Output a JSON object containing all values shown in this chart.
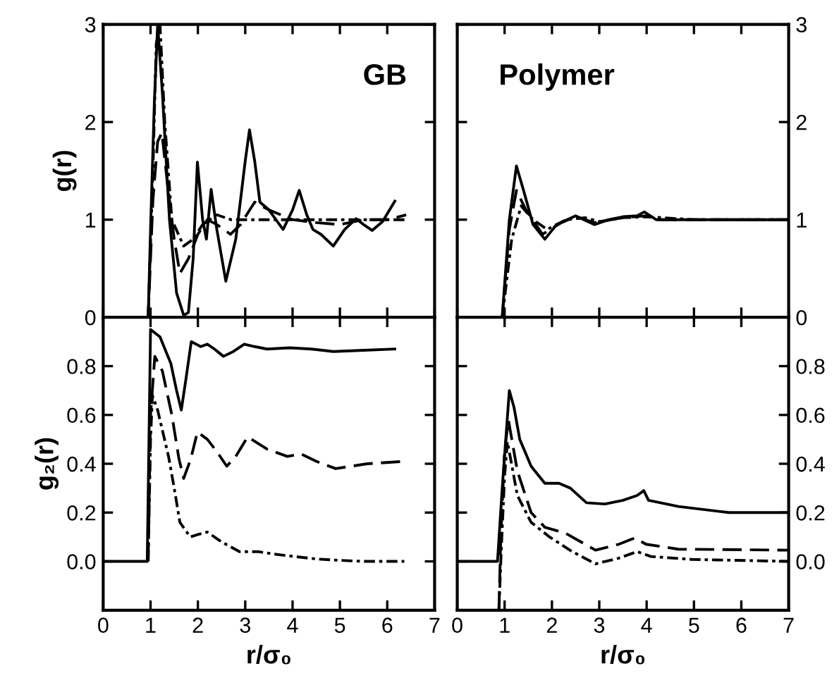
{
  "chart_data": [
    {
      "type": "line",
      "ylabel": "g(r)",
      "annotations": [
        "GB"
      ],
      "xlim": [
        0,
        7
      ],
      "xticks": [
        0,
        1,
        2,
        3,
        4,
        5,
        6,
        7
      ],
      "ylim": [
        0,
        3
      ],
      "yticks": [
        0,
        1,
        2,
        3
      ],
      "tick_labels": "y",
      "grid": false,
      "legend": false,
      "marker": "none",
      "series": [
        {
          "color": "#000000",
          "line_style": "solid",
          "x": [
            0.95,
            1.0,
            1.08,
            1.15,
            1.25,
            1.4,
            1.55,
            1.7,
            1.8,
            1.9,
            1.99,
            2.1,
            2.18,
            2.28,
            2.4,
            2.59,
            2.8,
            3.0,
            3.09,
            3.2,
            3.31,
            3.5,
            3.8,
            4.0,
            4.14,
            4.3,
            4.43,
            4.6,
            4.86,
            5.1,
            5.34,
            5.5,
            5.68,
            5.9,
            6.16
          ],
          "values": [
            0,
            0.9,
            2.2,
            3.0,
            2.3,
            1.0,
            0.25,
            0.02,
            0.05,
            0.6,
            1.59,
            1.0,
            0.8,
            1.31,
            0.9,
            0.37,
            0.8,
            1.6,
            1.92,
            1.6,
            1.18,
            1.1,
            0.9,
            1.1,
            1.3,
            1.05,
            0.9,
            0.85,
            0.73,
            0.9,
            1.01,
            0.95,
            0.89,
            0.98,
            1.19
          ]
        },
        {
          "color": "#000000",
          "line_style": "dashed",
          "x": [
            0.95,
            1.05,
            1.15,
            1.24,
            1.35,
            1.5,
            1.62,
            1.8,
            2.0,
            2.2,
            2.4,
            2.69,
            2.9,
            3.2,
            3.5,
            4.0,
            4.5,
            5.0,
            5.5,
            6.0,
            6.4
          ],
          "values": [
            0,
            1.2,
            1.8,
            1.89,
            1.4,
            0.8,
            0.45,
            0.6,
            0.85,
            1.0,
            0.95,
            0.85,
            0.95,
            1.18,
            1.1,
            1.0,
            0.97,
            0.95,
            1.0,
            1.0,
            1.05
          ]
        },
        {
          "color": "#000000",
          "line_style": "dashdot",
          "x": [
            0.95,
            1.05,
            1.12,
            1.2,
            1.3,
            1.45,
            1.7,
            1.9,
            2.1,
            2.4,
            2.7,
            3.0,
            3.5,
            4.0,
            5.0,
            6.0,
            6.4
          ],
          "values": [
            0,
            1.5,
            2.8,
            3.0,
            2.0,
            1.0,
            0.73,
            0.8,
            0.95,
            1.05,
            1.0,
            1.0,
            1.0,
            1.0,
            1.0,
            1.0,
            1.0
          ]
        }
      ]
    },
    {
      "type": "line",
      "annotations": [
        "Polymer"
      ],
      "xlim": [
        0,
        7
      ],
      "xticks": [
        0,
        1,
        2,
        3,
        4,
        5,
        6,
        7
      ],
      "ylim": [
        0,
        3
      ],
      "yticks": [
        0,
        1,
        2,
        3
      ],
      "tick_labels": "y",
      "grid": false,
      "legend": false,
      "marker": "none",
      "series": [
        {
          "color": "#000000",
          "line_style": "solid",
          "x": [
            0.95,
            1.1,
            1.25,
            1.4,
            1.6,
            1.85,
            2.1,
            2.5,
            2.9,
            3.2,
            3.5,
            3.8,
            3.95,
            4.2,
            5,
            6,
            7
          ],
          "values": [
            0,
            1.0,
            1.55,
            1.3,
            0.95,
            0.8,
            0.95,
            1.04,
            0.95,
            1.0,
            1.03,
            1.04,
            1.08,
            1.0,
            1.0,
            1.0,
            1.0
          ]
        },
        {
          "color": "#000000",
          "line_style": "dashed",
          "x": [
            0.95,
            1.1,
            1.25,
            1.45,
            1.8,
            2.2,
            2.5,
            2.9,
            3.5,
            4.0,
            4.2,
            5,
            7
          ],
          "values": [
            0,
            0.9,
            1.3,
            1.1,
            0.85,
            0.97,
            1.03,
            0.97,
            1.02,
            1.04,
            1.0,
            1.0,
            1.0
          ]
        },
        {
          "color": "#000000",
          "line_style": "dashdot",
          "x": [
            0.95,
            1.15,
            1.35,
            1.6,
            1.9,
            2.3,
            2.7,
            3.0,
            3.5,
            4.0,
            5,
            7
          ],
          "values": [
            0,
            0.8,
            1.14,
            1.0,
            0.9,
            1.0,
            1.02,
            0.98,
            1.02,
            1.03,
            1.0,
            1.0
          ]
        }
      ]
    },
    {
      "type": "line",
      "ylabel": "g₂(r)",
      "xlabel": "r/σ₀",
      "xlim": [
        0,
        7
      ],
      "xticks": [
        0,
        1,
        2,
        3,
        4,
        5,
        6,
        7
      ],
      "ylim": [
        -0.2,
        1.0
      ],
      "yticks": [
        {
          "value": 0,
          "label": "0.0"
        },
        {
          "value": 0.2,
          "label": "0.2"
        },
        {
          "value": 0.4,
          "label": "0.4"
        },
        {
          "value": 0.6,
          "label": "0.6"
        },
        {
          "value": 0.8,
          "label": "0.8"
        }
      ],
      "grid": false,
      "legend": false,
      "marker": "none",
      "series": [
        {
          "color": "#000000",
          "line_style": "solid",
          "x": [
            0,
            0.93,
            1.0,
            1.2,
            1.43,
            1.55,
            1.65,
            1.75,
            1.86,
            2.06,
            2.2,
            2.35,
            2.54,
            2.75,
            2.98,
            3.2,
            3.46,
            3.94,
            4.4,
            4.86,
            5.5,
            6.16
          ],
          "values": [
            0,
            0,
            0.95,
            0.92,
            0.81,
            0.7,
            0.62,
            0.75,
            0.9,
            0.88,
            0.89,
            0.87,
            0.84,
            0.86,
            0.89,
            0.88,
            0.87,
            0.875,
            0.87,
            0.86,
            0.865,
            0.87
          ]
        },
        {
          "color": "#000000",
          "line_style": "dashed",
          "x": [
            0.95,
            1.0,
            1.09,
            1.25,
            1.45,
            1.6,
            1.7,
            1.85,
            1.99,
            2.2,
            2.4,
            2.61,
            2.8,
            3.05,
            3.46,
            3.89,
            4.18,
            4.5,
            4.91,
            5.58,
            6.36
          ],
          "values": [
            0,
            0.6,
            0.84,
            0.78,
            0.6,
            0.42,
            0.34,
            0.42,
            0.53,
            0.5,
            0.45,
            0.39,
            0.43,
            0.51,
            0.46,
            0.43,
            0.44,
            0.41,
            0.38,
            0.4,
            0.41
          ]
        },
        {
          "color": "#000000",
          "line_style": "dashdot",
          "x": [
            0.95,
            1.0,
            1.04,
            1.15,
            1.38,
            1.5,
            1.62,
            1.84,
            2.0,
            2.2,
            2.5,
            2.88,
            3.27,
            3.6,
            4.04,
            4.5,
            4.91,
            5.5,
            6.36
          ],
          "values": [
            0,
            0.5,
            0.68,
            0.62,
            0.43,
            0.3,
            0.16,
            0.1,
            0.11,
            0.12,
            0.08,
            0.04,
            0.04,
            0.03,
            0.02,
            0.01,
            0.005,
            0.0,
            0.0
          ]
        }
      ]
    },
    {
      "type": "line",
      "xlabel": "r/σ₀",
      "xlim": [
        0,
        7
      ],
      "xticks": [
        0,
        1,
        2,
        3,
        4,
        5,
        6,
        7
      ],
      "ylim": [
        -0.2,
        1.0
      ],
      "yticks": [
        {
          "value": 0,
          "label": "0.0"
        },
        {
          "value": 0.2,
          "label": "0.2"
        },
        {
          "value": 0.4,
          "label": "0.4"
        },
        {
          "value": 0.6,
          "label": "0.6"
        },
        {
          "value": 0.8,
          "label": "0.8"
        }
      ],
      "grid": false,
      "legend": false,
      "marker": "none",
      "series": [
        {
          "color": "#000000",
          "line_style": "solid",
          "x": [
            0,
            0.85,
            0.95,
            1.1,
            1.2,
            1.32,
            1.56,
            1.85,
            2.15,
            2.39,
            2.73,
            3.12,
            3.5,
            3.8,
            3.94,
            4.04,
            4.67,
            5.74,
            7
          ],
          "values": [
            0,
            0,
            0.3,
            0.7,
            0.63,
            0.5,
            0.39,
            0.32,
            0.32,
            0.3,
            0.24,
            0.235,
            0.25,
            0.27,
            0.29,
            0.25,
            0.225,
            0.2,
            0.2
          ]
        },
        {
          "color": "#000000",
          "line_style": "dashed",
          "x": [
            0.88,
            0.92,
            1.0,
            1.08,
            1.27,
            1.56,
            1.85,
            2.29,
            2.92,
            3.41,
            3.75,
            3.99,
            4.67,
            7
          ],
          "values": [
            -0.2,
            0.1,
            0.45,
            0.58,
            0.37,
            0.2,
            0.14,
            0.115,
            0.046,
            0.07,
            0.096,
            0.07,
            0.05,
            0.046
          ]
        },
        {
          "color": "#000000",
          "line_style": "dashdot",
          "x": [
            0.88,
            0.93,
            1.0,
            1.06,
            1.27,
            1.56,
            1.95,
            2.43,
            2.92,
            3.41,
            3.8,
            4.09,
            4.96,
            7
          ],
          "values": [
            -0.2,
            0.05,
            0.35,
            0.49,
            0.27,
            0.16,
            0.1,
            0.04,
            -0.01,
            0.013,
            0.04,
            0.02,
            0.008,
            0
          ]
        }
      ]
    }
  ]
}
